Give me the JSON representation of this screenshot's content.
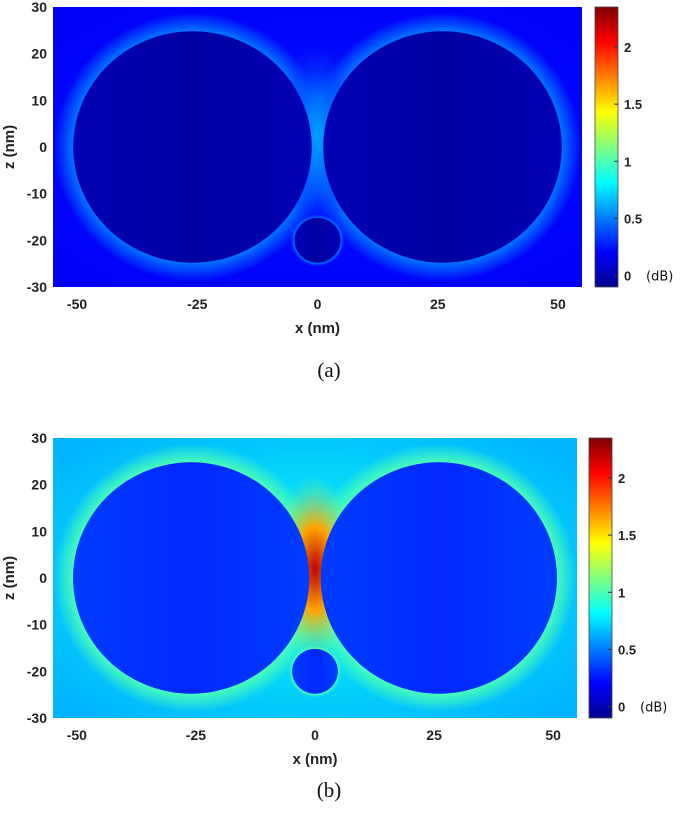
{
  "chart_data": [
    {
      "type": "heatmap",
      "panel_label": "(a)",
      "xlabel": "x (nm)",
      "ylabel": "z (nm)",
      "xlim": [
        -55,
        55
      ],
      "ylim": [
        -30,
        30
      ],
      "xticks": [
        "-50",
        "-25",
        "0",
        "25",
        "50"
      ],
      "xtick_values": [
        -50,
        -25,
        0,
        25,
        50
      ],
      "yticks": [
        "30",
        "20",
        "10",
        "0",
        "-10",
        "-20",
        "-30"
      ],
      "ytick_values": [
        30,
        20,
        10,
        0,
        -10,
        -20,
        -30
      ],
      "colorbar": {
        "unit": "(dB)",
        "range": [
          -0.1,
          2.35
        ],
        "ticks": [
          "2",
          "1.5",
          "1",
          "0.5",
          "0"
        ],
        "tick_values": [
          2,
          1.5,
          1,
          0.5,
          0
        ],
        "colormap": [
          "#00008f",
          "#0000ff",
          "#0080ff",
          "#00ffff",
          "#80ff80",
          "#ffff00",
          "#ff8000",
          "#ff0000",
          "#800000"
        ]
      },
      "objects": [
        {
          "shape": "circle",
          "center_x": -26,
          "center_z": 0,
          "radius": 24.8
        },
        {
          "shape": "circle",
          "center_x": 26,
          "center_z": 0,
          "radius": 24.8
        },
        {
          "shape": "circle",
          "center_x": 0,
          "center_z": -20,
          "radius": 4.8
        }
      ],
      "field_levels_db": {
        "background": 0.25,
        "outer_edge": 0.5,
        "gap": 0.6,
        "inside_spheres": 0.0
      }
    },
    {
      "type": "heatmap",
      "panel_label": "(b)",
      "xlabel": "x (nm)",
      "ylabel": "z (nm)",
      "xlim": [
        -55,
        55
      ],
      "ylim": [
        -30,
        30
      ],
      "xticks": [
        "-50",
        "-25",
        "0",
        "25",
        "50"
      ],
      "xtick_values": [
        -50,
        -25,
        0,
        25,
        50
      ],
      "yticks": [
        "30",
        "20",
        "10",
        "0",
        "-10",
        "-20",
        "-30"
      ],
      "ytick_values": [
        30,
        20,
        10,
        0,
        -10,
        -20,
        -30
      ],
      "colorbar": {
        "unit": "(dB)",
        "range": [
          -0.1,
          2.35
        ],
        "ticks": [
          "2",
          "1.5",
          "1",
          "0.5",
          "0"
        ],
        "tick_values": [
          2,
          1.5,
          1,
          0.5,
          0
        ],
        "colormap": [
          "#00008f",
          "#0000ff",
          "#0080ff",
          "#00ffff",
          "#80ff80",
          "#ffff00",
          "#ff8000",
          "#ff0000",
          "#800000"
        ]
      },
      "objects": [
        {
          "shape": "circle",
          "center_x": -26,
          "center_z": 0,
          "radius": 24.8
        },
        {
          "shape": "circle",
          "center_x": 26,
          "center_z": 0,
          "radius": 24.8
        },
        {
          "shape": "circle",
          "center_x": 0,
          "center_z": -20,
          "radius": 4.8
        }
      ],
      "field_levels_db": {
        "background": 0.85,
        "outer_edge": 1.0,
        "gap": 2.2,
        "inside_spheres": 0.35
      }
    }
  ]
}
